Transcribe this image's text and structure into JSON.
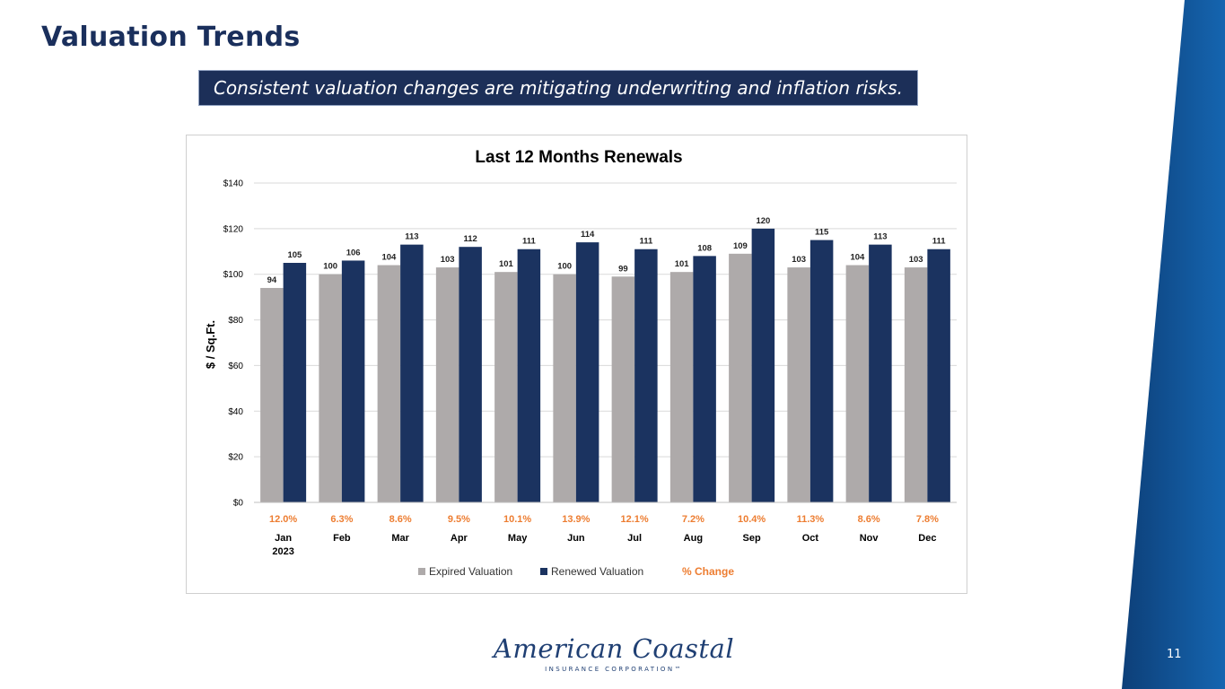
{
  "slide": {
    "title": "Valuation Trends",
    "subtitle": "Consistent valuation changes are mitigating underwriting and inflation risks.",
    "page_number": "11",
    "logo": {
      "name": "American Coastal",
      "tagline": "INSURANCE CORPORATION™"
    }
  },
  "colors": {
    "expired": "#aeaaaa",
    "renewed": "#1b3360",
    "change": "#ed7d31",
    "title": "#1a2f5c",
    "ribbon": "#0f5a9e"
  },
  "chart_data": {
    "type": "bar",
    "title": "Last 12 Months Renewals",
    "ylabel": "$ / Sq.Ft.",
    "xlabel": "",
    "ylim": [
      0,
      140
    ],
    "yticks": [
      {
        "value": 0,
        "label": "$0"
      },
      {
        "value": 20,
        "label": "$20"
      },
      {
        "value": 40,
        "label": "$40"
      },
      {
        "value": 60,
        "label": "$60"
      },
      {
        "value": 80,
        "label": "$80"
      },
      {
        "value": 100,
        "label": "$100"
      },
      {
        "value": 120,
        "label": "$120"
      },
      {
        "value": 140,
        "label": "$140"
      }
    ],
    "categories": [
      "Jan",
      "Feb",
      "Mar",
      "Apr",
      "May",
      "Jun",
      "Jul",
      "Aug",
      "Sep",
      "Oct",
      "Nov",
      "Dec"
    ],
    "category_sublabels": [
      "2023",
      "",
      "",
      "",
      "",
      "",
      "",
      "",
      "",
      "",
      "",
      ""
    ],
    "series": [
      {
        "name": "Expired Valuation",
        "values": [
          94,
          100,
          104,
          103,
          101,
          100,
          99,
          101,
          109,
          103,
          104,
          103
        ]
      },
      {
        "name": "Renewed Valuation",
        "values": [
          105,
          106,
          113,
          112,
          111,
          114,
          111,
          108,
          120,
          115,
          113,
          111
        ]
      }
    ],
    "percent_change": {
      "name": "% Change",
      "values": [
        "12.0%",
        "6.3%",
        "8.6%",
        "9.5%",
        "10.1%",
        "13.9%",
        "12.1%",
        "7.2%",
        "10.4%",
        "11.3%",
        "8.6%",
        "7.8%"
      ]
    },
    "legend": [
      "Expired Valuation",
      "Renewed Valuation",
      "% Change"
    ],
    "grid": true,
    "legend_position": "bottom"
  }
}
